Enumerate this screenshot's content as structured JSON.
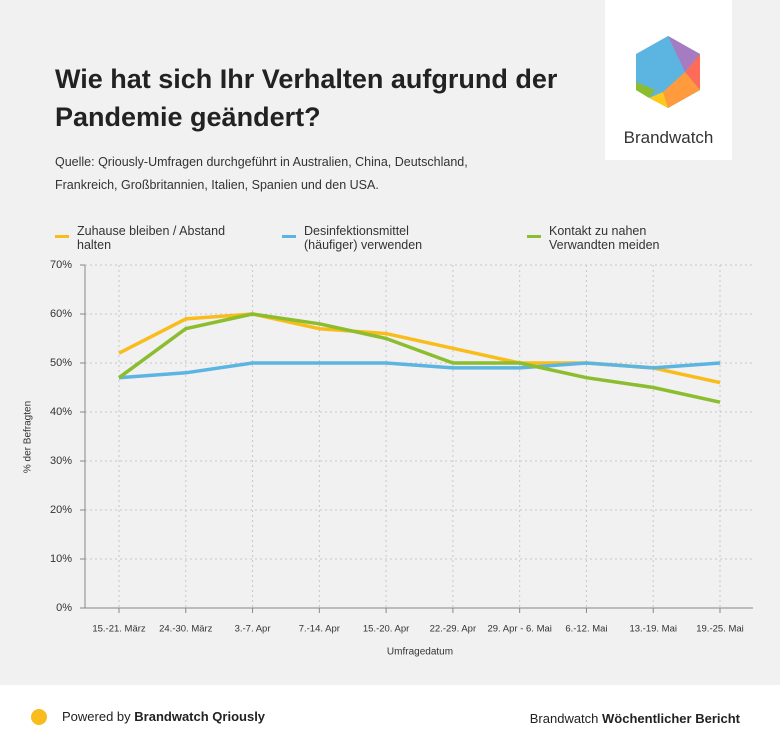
{
  "chart_data": {
    "type": "line",
    "title": "Wie hat sich Ihr Verhalten aufgrund der Pandemie geändert?",
    "subtitle": "Quelle: Qriously-Umfragen durchgeführt in Australien, China, Deutschland, Frankreich, Großbritannien, Italien, Spanien und den USA.",
    "x_label": "Umfragedatum",
    "y_label": "% der Befragten",
    "categories": [
      "15.-21. März",
      "24.-30. März",
      "3.-7. Apr",
      "7.-14. Apr",
      "15.-20. Apr",
      "22.-29. Apr",
      "29. Apr - 6. Mai",
      "6.-12. Mai",
      "13.-19. Mai",
      "19.-25. Mai"
    ],
    "series": [
      {
        "name": "Zuhause bleiben / Abstand halten",
        "color": "#f8bd1c",
        "values": [
          52,
          59,
          60,
          57,
          56,
          53,
          50,
          50,
          49,
          46
        ]
      },
      {
        "name": "Desinfektionsmittel (häufiger) verwenden",
        "color": "#5cb5e1",
        "values": [
          47,
          48,
          50,
          50,
          50,
          49,
          49,
          50,
          49,
          50
        ]
      },
      {
        "name": "Kontakt zu nahen Verwandten meiden",
        "color": "#8bbd2e",
        "values": [
          47,
          57,
          60,
          58,
          55,
          50,
          50,
          47,
          45,
          42
        ]
      }
    ],
    "ylim": [
      0,
      70
    ],
    "yticks": [
      {
        "value": 0,
        "label": "0%"
      },
      {
        "value": 10,
        "label": "10%"
      },
      {
        "value": 20,
        "label": "20%"
      },
      {
        "value": 30,
        "label": "30%"
      },
      {
        "value": 40,
        "label": "40%"
      },
      {
        "value": 50,
        "label": "50%"
      },
      {
        "value": 60,
        "label": "60%"
      },
      {
        "value": 70,
        "label": "70%"
      }
    ],
    "grid": true,
    "legend": "top"
  },
  "logo": {
    "text": "Brandwatch"
  },
  "footer": {
    "powered_prefix": "Powered by",
    "powered_brand": "Brandwatch Qriously",
    "report_prefix": "Brandwatch",
    "report_name": "Wöchentlicher Bericht"
  }
}
